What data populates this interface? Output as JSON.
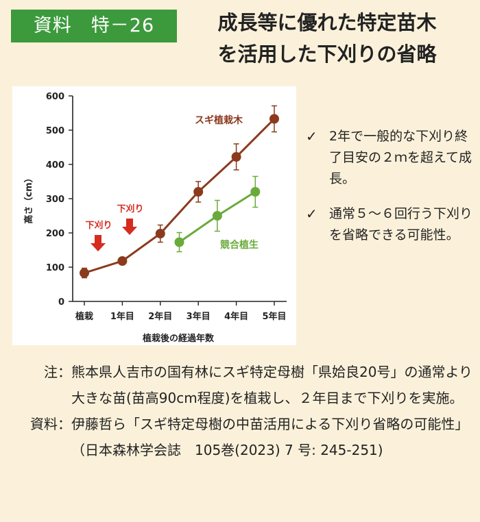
{
  "header": {
    "badge": "資料　特－26",
    "title_line1": "成長等に優れた特定苗木",
    "title_line2": "を活用した下刈りの省略"
  },
  "chart_data": {
    "type": "line",
    "categories": [
      "植栽",
      "1年目",
      "2年目",
      "3年目",
      "4年目",
      "5年目"
    ],
    "ylabel": "高さ（cm）",
    "xlabel": "植栽後の経過年数",
    "ylim": [
      0,
      600
    ],
    "yticks": [
      0,
      100,
      200,
      300,
      400,
      500,
      600
    ],
    "grid": false,
    "series": [
      {
        "name": "スギ植栽木",
        "color": "#8b3a1e",
        "x": [
          0,
          1,
          2,
          3,
          4,
          5
        ],
        "values": [
          83,
          118,
          198,
          320,
          422,
          533
        ],
        "err": [
          14,
          8,
          25,
          30,
          38,
          38
        ]
      },
      {
        "name": "競合植生",
        "color": "#6aaa3a",
        "x": [
          2.5,
          3.5,
          4.5
        ],
        "values": [
          173,
          250,
          320
        ],
        "err": [
          28,
          45,
          45
        ]
      }
    ],
    "annotations": [
      {
        "text": "下刈り",
        "color": "#d62b1f",
        "x": 0.2
      },
      {
        "text": "下刈り",
        "color": "#d62b1f",
        "x": 1.4
      }
    ]
  },
  "bullets": [
    "2年で一般的な下刈り終了目安の２ｍを超えて成長。",
    "通常５～６回行う下刈りを省略できる可能性。"
  ],
  "bullet_mark": "✓",
  "notes": [
    {
      "label": "注：",
      "text": "熊本県人吉市の国有林にスギ特定母樹「県姶良20号」の通常より大きな苗(苗高90cm程度)を植栽し、２年目まで下刈りを実施。"
    },
    {
      "label": "資料：",
      "text": "伊藤哲ら「スギ特定母樹の中苗活用による下刈り省略の可能性」（日本森林学会誌　105巻(2023) 7 号: 245-251)"
    }
  ]
}
